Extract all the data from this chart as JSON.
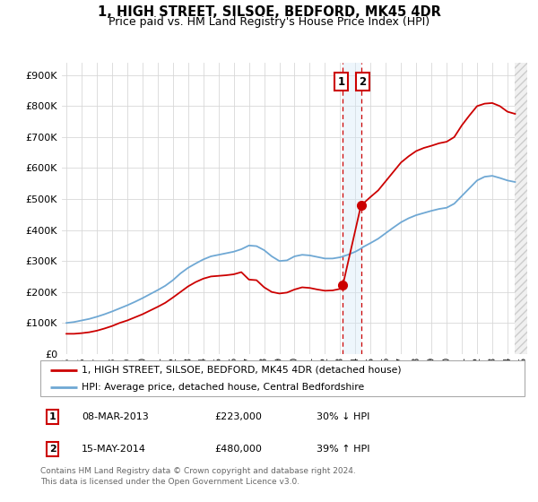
{
  "title": "1, HIGH STREET, SILSOE, BEDFORD, MK45 4DR",
  "subtitle": "Price paid vs. HM Land Registry's House Price Index (HPI)",
  "legend_line1": "1, HIGH STREET, SILSOE, BEDFORD, MK45 4DR (detached house)",
  "legend_line2": "HPI: Average price, detached house, Central Bedfordshire",
  "transaction1_date": "08-MAR-2013",
  "transaction1_price": "£223,000",
  "transaction1_hpi": "30% ↓ HPI",
  "transaction2_date": "15-MAY-2014",
  "transaction2_price": "£480,000",
  "transaction2_hpi": "39% ↑ HPI",
  "footer": "Contains HM Land Registry data © Crown copyright and database right 2024.\nThis data is licensed under the Open Government Licence v3.0.",
  "hpi_color": "#6fa8d4",
  "price_color": "#cc0000",
  "vline_color": "#cc0000",
  "shade_color": "#d0e8f8",
  "hatch_color": "#e0e0e0",
  "ylim": [
    0,
    940000
  ],
  "yticks": [
    0,
    100000,
    200000,
    300000,
    400000,
    500000,
    600000,
    700000,
    800000,
    900000
  ],
  "xlim_start": 1994.7,
  "xlim_end": 2025.3,
  "transaction1_x": 2013.18,
  "transaction1_y": 223000,
  "transaction2_x": 2014.37,
  "transaction2_y": 480000,
  "hpi_start_x": 1995.0,
  "price_start_x": 1995.0,
  "hpi_data_x": [
    1995.0,
    1995.5,
    1996.0,
    1996.5,
    1997.0,
    1997.5,
    1998.0,
    1998.5,
    1999.0,
    1999.5,
    2000.0,
    2000.5,
    2001.0,
    2001.5,
    2002.0,
    2002.5,
    2003.0,
    2003.5,
    2004.0,
    2004.5,
    2005.0,
    2005.5,
    2006.0,
    2006.5,
    2007.0,
    2007.5,
    2008.0,
    2008.5,
    2009.0,
    2009.5,
    2010.0,
    2010.5,
    2011.0,
    2011.5,
    2012.0,
    2012.5,
    2013.0,
    2013.5,
    2014.0,
    2014.37,
    2014.5,
    2015.0,
    2015.5,
    2016.0,
    2016.5,
    2017.0,
    2017.5,
    2018.0,
    2018.5,
    2019.0,
    2019.5,
    2020.0,
    2020.5,
    2021.0,
    2021.5,
    2022.0,
    2022.5,
    2023.0,
    2023.5,
    2024.0,
    2024.5
  ],
  "hpi_data_y": [
    100000,
    103000,
    108000,
    113000,
    120000,
    128000,
    137000,
    147000,
    157000,
    168000,
    180000,
    193000,
    206000,
    220000,
    238000,
    260000,
    278000,
    292000,
    305000,
    315000,
    320000,
    325000,
    330000,
    338000,
    350000,
    348000,
    335000,
    315000,
    300000,
    302000,
    315000,
    320000,
    318000,
    313000,
    308000,
    308000,
    312000,
    320000,
    330000,
    340000,
    345000,
    358000,
    372000,
    390000,
    408000,
    425000,
    438000,
    448000,
    455000,
    462000,
    468000,
    472000,
    485000,
    510000,
    535000,
    560000,
    572000,
    575000,
    568000,
    560000,
    555000
  ],
  "price_data_x": [
    1995.0,
    1995.5,
    1996.0,
    1996.5,
    1997.0,
    1997.5,
    1998.0,
    1998.5,
    1999.0,
    1999.5,
    2000.0,
    2000.5,
    2001.0,
    2001.5,
    2002.0,
    2002.5,
    2003.0,
    2003.5,
    2004.0,
    2004.5,
    2005.0,
    2005.5,
    2006.0,
    2006.5,
    2007.0,
    2007.5,
    2008.0,
    2008.5,
    2009.0,
    2009.5,
    2010.0,
    2010.5,
    2011.0,
    2011.5,
    2012.0,
    2012.5,
    2013.0,
    2013.18,
    2014.37,
    2014.5,
    2015.0,
    2015.5,
    2016.0,
    2016.5,
    2017.0,
    2017.5,
    2018.0,
    2018.5,
    2019.0,
    2019.5,
    2020.0,
    2020.5,
    2021.0,
    2021.5,
    2022.0,
    2022.5,
    2023.0,
    2023.5,
    2024.0,
    2024.5
  ],
  "price_data_y": [
    65000,
    65000,
    67000,
    70000,
    75000,
    82000,
    90000,
    100000,
    108000,
    118000,
    128000,
    140000,
    152000,
    165000,
    182000,
    200000,
    218000,
    232000,
    243000,
    250000,
    252000,
    254000,
    257000,
    264000,
    240000,
    238000,
    215000,
    200000,
    195000,
    198000,
    208000,
    215000,
    213000,
    208000,
    204000,
    205000,
    210000,
    223000,
    480000,
    485000,
    507000,
    528000,
    558000,
    588000,
    618000,
    638000,
    655000,
    665000,
    672000,
    680000,
    685000,
    700000,
    738000,
    770000,
    800000,
    808000,
    810000,
    800000,
    782000,
    775000
  ]
}
